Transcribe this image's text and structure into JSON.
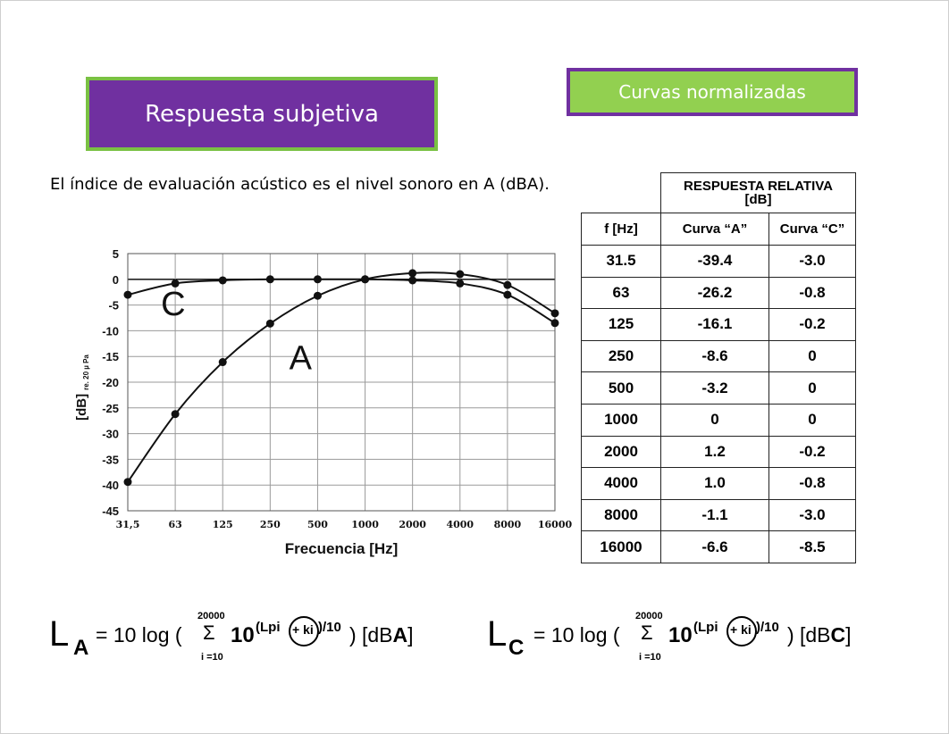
{
  "title": "Respuesta subjetiva",
  "tag": "Curvas normalizadas",
  "intro": "El índice de evaluación acústico es el nivel sonoro en A (dBA).",
  "chart_data": {
    "type": "line",
    "xlabel": "Frecuencia [Hz]",
    "ylabel": "[dB]",
    "ylabel_sub": "re. 20 µ Pa",
    "x_scale": "log",
    "categories": [
      "31,5",
      "63",
      "125",
      "250",
      "500",
      "1000",
      "2000",
      "4000",
      "8000",
      "16000"
    ],
    "y_ticks": [
      5,
      0,
      -5,
      -10,
      -15,
      -20,
      -25,
      -30,
      -35,
      -40,
      -45
    ],
    "ylim": [
      -45,
      5
    ],
    "grid": true,
    "series": [
      {
        "name": "A",
        "values": [
          -39.4,
          -26.2,
          -16.1,
          -8.6,
          -3.2,
          0,
          1.2,
          1.0,
          -1.1,
          -6.6
        ],
        "label_at": [
          3.4,
          -17.5
        ]
      },
      {
        "name": "C",
        "values": [
          -3.0,
          -0.8,
          -0.2,
          0,
          0,
          0,
          -0.2,
          -0.8,
          -3.0,
          -8.5
        ],
        "label_at": [
          0.7,
          -7
        ]
      }
    ]
  },
  "table": {
    "header_group": "RESPUESTA RELATIVA [dB]",
    "header_group_line1": "RESPUESTA RELATIVA",
    "header_group_line2": "[dB]",
    "col_headers": [
      "f [Hz]",
      "Curva “A”",
      "Curva “C”"
    ],
    "rows": [
      [
        "31.5",
        "-39.4",
        "-3.0"
      ],
      [
        "63",
        "-26.2",
        "-0.8"
      ],
      [
        "125",
        "-16.1",
        "-0.2"
      ],
      [
        "250",
        "-8.6",
        "0"
      ],
      [
        "500",
        "-3.2",
        "0"
      ],
      [
        "1000",
        "0",
        "0"
      ],
      [
        "2000",
        "1.2",
        "-0.2"
      ],
      [
        "4000",
        "1.0",
        "-0.8"
      ],
      [
        "8000",
        "-1.1",
        "-3.0"
      ],
      [
        "16000",
        "-6.6",
        "-8.5"
      ]
    ]
  },
  "formula_a": {
    "L": "L",
    "sub": "A",
    "eq": "= 10 log (",
    "sum_top": "20000",
    "sum_sym": "Σ",
    "sum_bottom": "i =10",
    "ten": "10",
    "exp_l": "(Lpi",
    "exp_k": "+ ki",
    "exp_r": ")/10",
    "close": ")",
    "unit_pre": "[dB",
    "unit_bold": "A",
    "unit_post": "]"
  },
  "formula_c": {
    "L": "L",
    "sub": "C",
    "eq": "= 10 log (",
    "sum_top": "20000",
    "sum_sym": "Σ",
    "sum_bottom": "i =10",
    "ten": "10",
    "exp_l": "(Lpi",
    "exp_k": "+ ki",
    "exp_r": ")/10",
    "close": ")",
    "unit_pre": "[dB",
    "unit_bold": "C",
    "unit_post": "]"
  }
}
